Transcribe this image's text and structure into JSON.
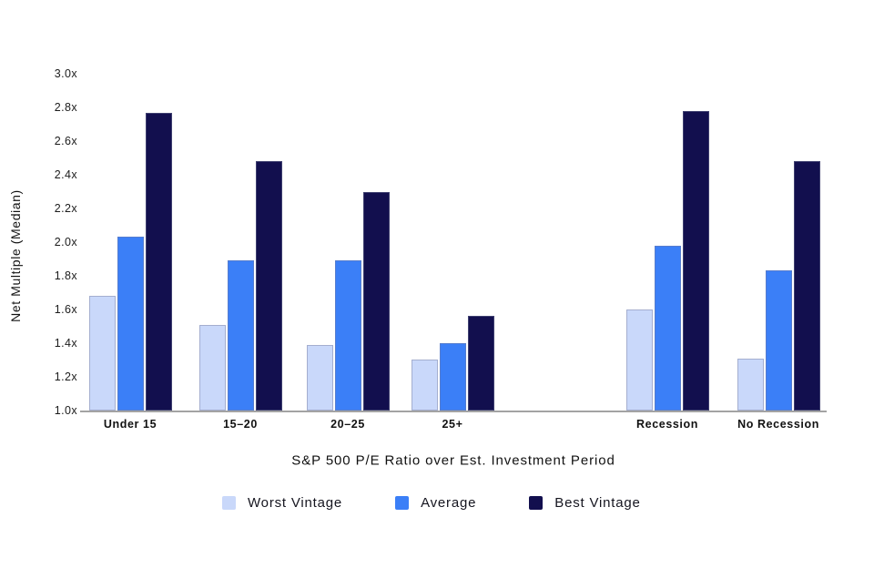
{
  "chart_data": {
    "type": "bar",
    "title": "",
    "xlabel": "S&P 500 P/E Ratio over Est. Investment Period",
    "ylabel": "Net Multiple (Median)",
    "categories": [
      "Under 15",
      "15–20",
      "20–25",
      "25+",
      "Recession",
      "No Recession"
    ],
    "series": [
      {
        "name": "Worst Vintage",
        "color": "#c9d8fa",
        "values": [
          1.68,
          1.51,
          1.39,
          1.3,
          1.6,
          1.31
        ]
      },
      {
        "name": "Average",
        "color": "#3b7ff7",
        "values": [
          2.03,
          1.89,
          1.89,
          1.4,
          1.98,
          1.83
        ]
      },
      {
        "name": "Best Vintage",
        "color": "#120f4e",
        "values": [
          2.77,
          2.48,
          2.3,
          1.56,
          2.78,
          2.48
        ]
      }
    ],
    "ylim": [
      1.0,
      3.0
    ],
    "ytick_step": 0.2,
    "yticks": [
      "1.0x",
      "1.2x",
      "1.4x",
      "1.6x",
      "1.8x",
      "2.0x",
      "2.2x",
      "2.4x",
      "2.6x",
      "2.8x",
      "3.0x"
    ],
    "grid": false,
    "legend_position": "bottom",
    "axis_line_color": "#a3a3a3",
    "text_color": "#1c1c1c",
    "background_color": "#ffffff"
  }
}
